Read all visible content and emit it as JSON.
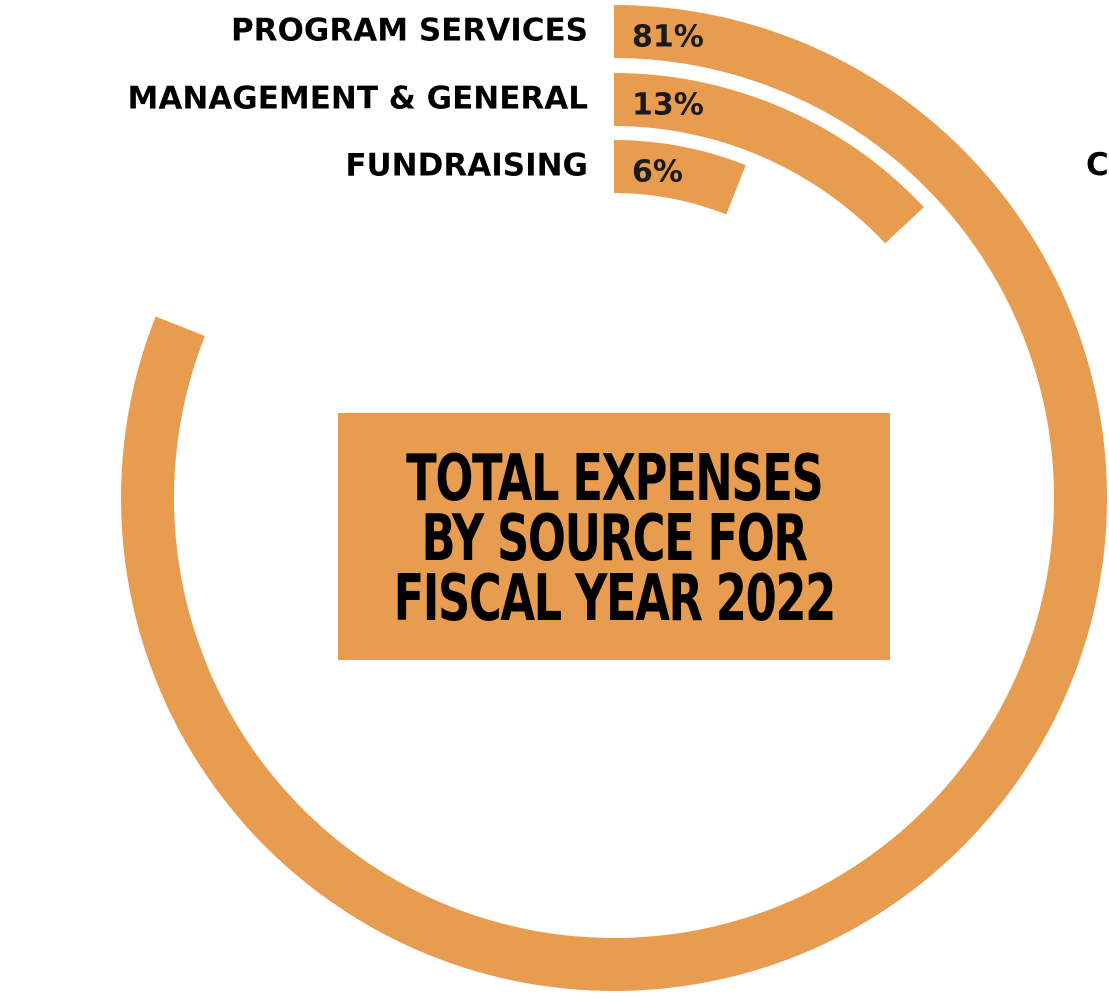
{
  "chart_data": {
    "type": "radial_bar",
    "title_lines": [
      "TOTAL EXPENSES",
      "BY SOURCE FOR",
      "FISCAL YEAR 2022"
    ],
    "categories": [
      "PROGRAM SERVICES",
      "MANAGEMENT & GENERAL",
      "FUNDRAISING"
    ],
    "values": [
      81,
      13,
      6
    ],
    "value_labels": [
      "81%",
      "13%",
      "6%"
    ],
    "unit": "%",
    "truncated_edge_text": "C",
    "colors": {
      "bar": "#e89c4f",
      "title_background": "#e89c4f",
      "text": "#000000"
    }
  }
}
